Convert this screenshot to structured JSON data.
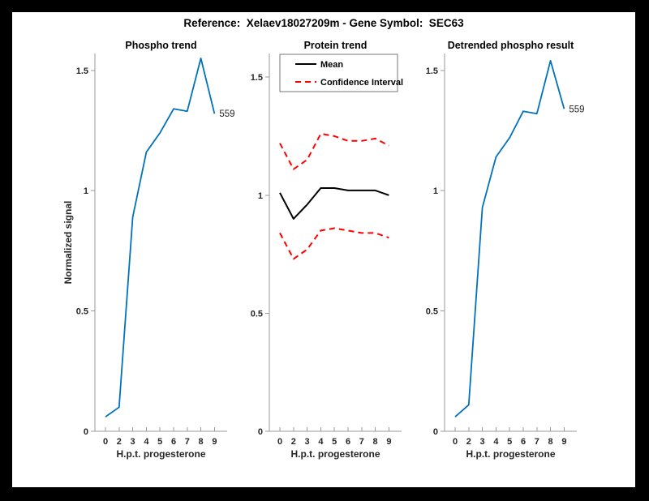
{
  "figure": {
    "title": "Reference:  Xelaev18027209m - Gene Symbol:  SEC63",
    "frame_color": "#000000",
    "canvas_color": "#ffffff",
    "axis_color": "#999999",
    "text_color": "#262626"
  },
  "chart_data": [
    {
      "type": "line",
      "title": "Phospho trend",
      "xlabel": "H.p.t. progesterone",
      "ylabel": "Normalized signal",
      "x_tick_labels": [
        "0",
        "2",
        "3",
        "4",
        "5",
        "6",
        "7",
        "8",
        "9"
      ],
      "y_ticks": [
        0,
        0.5,
        1,
        1.5
      ],
      "ylim": [
        0,
        1.57
      ],
      "grid": false,
      "series": [
        {
          "name": "phospho-signal",
          "color": "#0072BD",
          "style": "solid",
          "width": 1.8,
          "values": [
            0.06,
            0.1,
            0.89,
            1.16,
            1.24,
            1.34,
            1.33,
            1.55,
            1.32
          ]
        }
      ],
      "annotation": {
        "text": "559",
        "at_index": 8
      }
    },
    {
      "type": "line",
      "title": "Protein trend",
      "xlabel": "H.p.t. progesterone",
      "ylabel": "",
      "x_tick_labels": [
        "0",
        "2",
        "3",
        "4",
        "5",
        "6",
        "7",
        "8",
        "9"
      ],
      "y_ticks": [
        0,
        0.5,
        1,
        1.5
      ],
      "ylim": [
        0,
        1.6
      ],
      "grid": false,
      "legend": {
        "position": "top-left",
        "entries": [
          {
            "label": "Mean",
            "color": "#000000",
            "style": "solid"
          },
          {
            "label": "Confidence Interval",
            "color": "#FF0000",
            "style": "dashed"
          }
        ]
      },
      "series": [
        {
          "name": "confidence-upper",
          "color": "#FF0000",
          "style": "dashed",
          "width": 2,
          "values": [
            1.22,
            1.11,
            1.15,
            1.26,
            1.25,
            1.23,
            1.23,
            1.24,
            1.21
          ]
        },
        {
          "name": "confidence-lower",
          "color": "#FF0000",
          "style": "dashed",
          "width": 2,
          "values": [
            0.84,
            0.73,
            0.77,
            0.85,
            0.86,
            0.85,
            0.84,
            0.84,
            0.82
          ]
        },
        {
          "name": "mean",
          "color": "#000000",
          "style": "solid",
          "width": 2,
          "values": [
            1.01,
            0.9,
            0.96,
            1.03,
            1.03,
            1.02,
            1.02,
            1.02,
            1.0
          ]
        }
      ]
    },
    {
      "type": "line",
      "title": "Detrended phospho result",
      "xlabel": "H.p.t. progesterone",
      "ylabel": "",
      "x_tick_labels": [
        "0",
        "2",
        "3",
        "4",
        "5",
        "6",
        "7",
        "8",
        "9"
      ],
      "y_ticks": [
        0,
        0.5,
        1,
        1.5
      ],
      "ylim": [
        0,
        1.57
      ],
      "grid": false,
      "series": [
        {
          "name": "detrended-signal",
          "color": "#0072BD",
          "style": "solid",
          "width": 1.8,
          "values": [
            0.06,
            0.11,
            0.93,
            1.14,
            1.22,
            1.33,
            1.32,
            1.54,
            1.34
          ]
        }
      ],
      "annotation": {
        "text": "559",
        "at_index": 8
      }
    }
  ]
}
